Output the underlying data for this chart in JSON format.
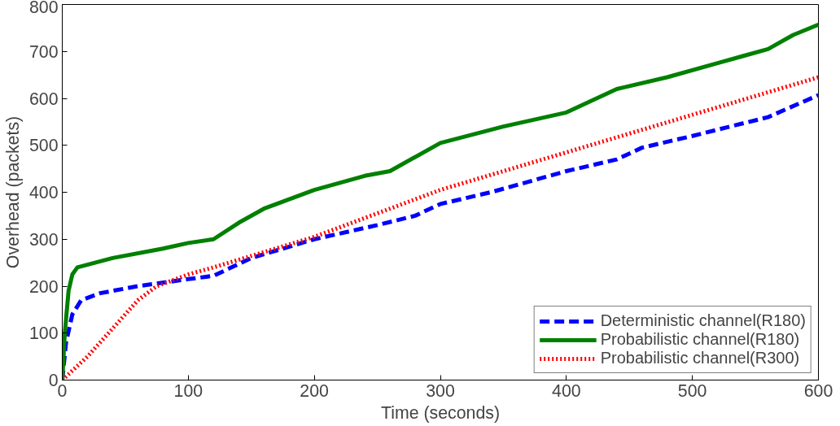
{
  "chart_data": {
    "type": "line",
    "xlabel": "Time (seconds)",
    "ylabel": "Overhead (packets)",
    "xlim": [
      0,
      600
    ],
    "ylim": [
      0,
      800
    ],
    "xticks": [
      0,
      100,
      200,
      300,
      400,
      500,
      600
    ],
    "yticks": [
      0,
      100,
      200,
      300,
      400,
      500,
      600,
      700,
      800
    ],
    "grid": false,
    "legend": "bottom right",
    "marker": "none",
    "series": [
      {
        "name": "Deterministic channel(R180)",
        "color": "#0000ff",
        "line_style": "dashed",
        "x": [
          0,
          3,
          8,
          15,
          30,
          60,
          100,
          120,
          150,
          200,
          250,
          280,
          300,
          340,
          400,
          440,
          460,
          500,
          560,
          600
        ],
        "values": [
          0,
          80,
          140,
          170,
          185,
          200,
          215,
          222,
          260,
          300,
          330,
          350,
          375,
          400,
          445,
          470,
          495,
          520,
          560,
          607
        ]
      },
      {
        "name": "Probabilistic channel(R180)",
        "color": "#008000",
        "line_style": "solid",
        "x": [
          0,
          2,
          5,
          8,
          12,
          40,
          80,
          100,
          120,
          140,
          160,
          200,
          240,
          260,
          300,
          350,
          400,
          440,
          480,
          520,
          540,
          560,
          580,
          600
        ],
        "values": [
          0,
          100,
          190,
          225,
          240,
          260,
          280,
          292,
          300,
          335,
          365,
          405,
          435,
          445,
          505,
          540,
          570,
          620,
          645,
          675,
          690,
          705,
          735,
          757
        ]
      },
      {
        "name": "Probabilistic channel(R300)",
        "color": "#ff0000",
        "line_style": "dotted",
        "x": [
          0,
          20,
          40,
          60,
          75,
          100,
          120,
          200,
          300,
          400,
          500,
          600
        ],
        "values": [
          0,
          50,
          110,
          170,
          200,
          225,
          240,
          305,
          405,
          485,
          565,
          645
        ]
      }
    ]
  }
}
